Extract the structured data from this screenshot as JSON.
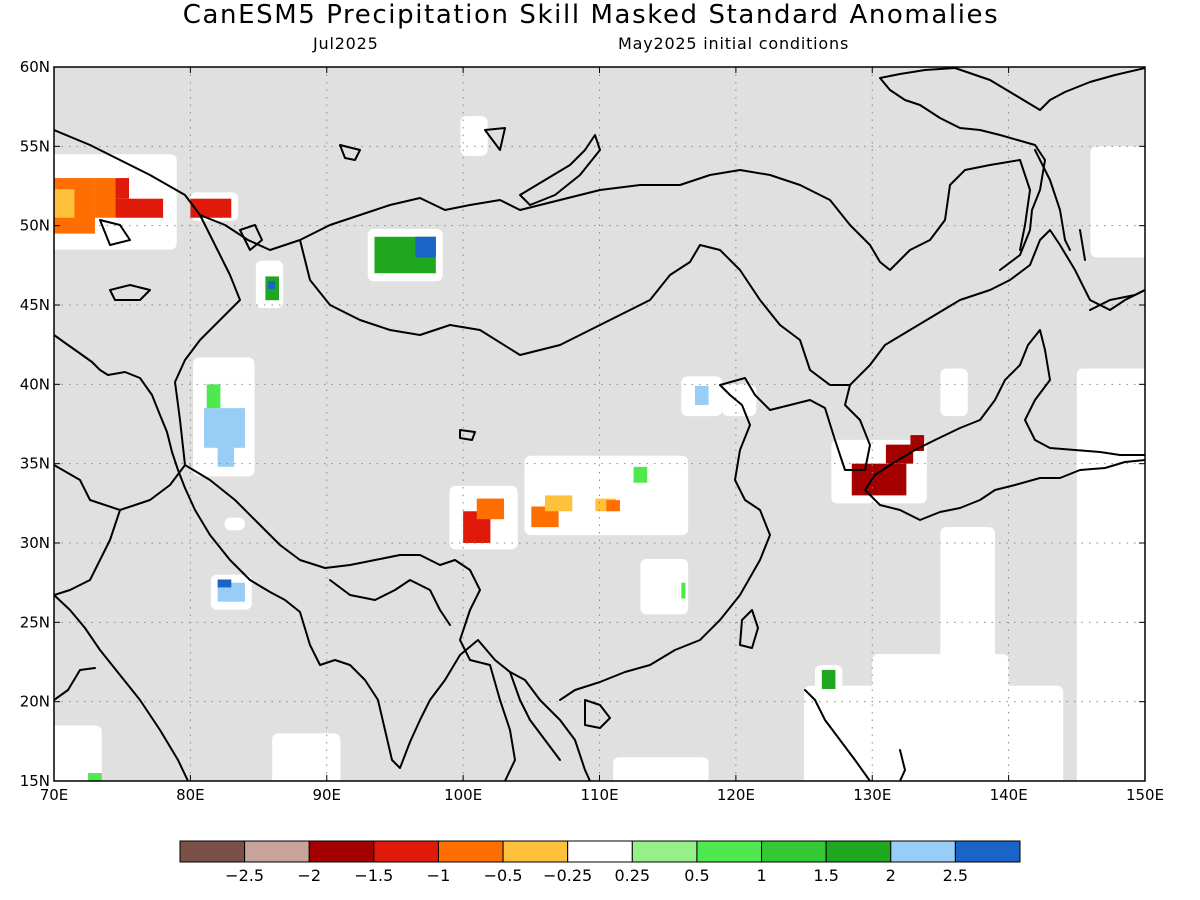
{
  "title": "CanESM5 Precipitation Skill Masked Standard Anomalies",
  "valid_month": "Jul2025",
  "initial_conditions": "May2025 initial conditions",
  "map": {
    "lon_range": [
      70,
      150
    ],
    "lat_range": [
      15,
      60
    ],
    "lon_ticks": [
      {
        "v": 70,
        "label": "70E"
      },
      {
        "v": 80,
        "label": "80E"
      },
      {
        "v": 90,
        "label": "90E"
      },
      {
        "v": 100,
        "label": "100E"
      },
      {
        "v": 110,
        "label": "110E"
      },
      {
        "v": 120,
        "label": "120E"
      },
      {
        "v": 130,
        "label": "130E"
      },
      {
        "v": 140,
        "label": "140E"
      },
      {
        "v": 150,
        "label": "150E"
      }
    ],
    "lat_ticks": [
      {
        "v": 15,
        "label": "15N"
      },
      {
        "v": 20,
        "label": "20N"
      },
      {
        "v": 25,
        "label": "25N"
      },
      {
        "v": 30,
        "label": "30N"
      },
      {
        "v": 35,
        "label": "35N"
      },
      {
        "v": 40,
        "label": "40N"
      },
      {
        "v": 45,
        "label": "45N"
      },
      {
        "v": 50,
        "label": "50N"
      },
      {
        "v": 55,
        "label": "55N"
      },
      {
        "v": 60,
        "label": "60N"
      }
    ],
    "grid": true,
    "mask_color": "#e0e0e0",
    "anomaly_cells": [
      {
        "lon": 70,
        "lat": 49.5,
        "w": 3,
        "h": 3.5,
        "class": "-1"
      },
      {
        "lon": 70,
        "lat": 50.5,
        "w": 1.5,
        "h": 1.8,
        "class": "-0.5"
      },
      {
        "lon": 73,
        "lat": 50.5,
        "w": 1.5,
        "h": 2.5,
        "class": "-1"
      },
      {
        "lon": 74.5,
        "lat": 50.5,
        "w": 3.5,
        "h": 1.2,
        "class": "-1.5"
      },
      {
        "lon": 74.5,
        "lat": 51.7,
        "w": 1,
        "h": 1.3,
        "class": "-1.5"
      },
      {
        "lon": 80,
        "lat": 50.5,
        "w": 3,
        "h": 1.2,
        "class": "-1.5"
      },
      {
        "lon": 93.5,
        "lat": 47,
        "w": 4.5,
        "h": 2.3,
        "class": "1.5"
      },
      {
        "lon": 96.5,
        "lat": 48,
        "w": 1.5,
        "h": 1.3,
        "class": "2.5"
      },
      {
        "lon": 85.5,
        "lat": 45.3,
        "w": 1,
        "h": 1.5,
        "class": "1.5"
      },
      {
        "lon": 85.7,
        "lat": 46,
        "w": 0.5,
        "h": 0.5,
        "class": "2.5"
      },
      {
        "lon": 81,
        "lat": 36,
        "w": 3,
        "h": 2.5,
        "class": "2"
      },
      {
        "lon": 82,
        "lat": 34.8,
        "w": 1.2,
        "h": 1.5,
        "class": "2"
      },
      {
        "lon": 81.2,
        "lat": 38.5,
        "w": 1,
        "h": 1.5,
        "class": "0.5"
      },
      {
        "lon": 82,
        "lat": 26.3,
        "w": 2,
        "h": 1.2,
        "class": "2"
      },
      {
        "lon": 82,
        "lat": 27.2,
        "w": 1,
        "h": 0.5,
        "class": "2.5"
      },
      {
        "lon": 100,
        "lat": 30,
        "w": 2,
        "h": 2,
        "class": "-1.5"
      },
      {
        "lon": 101,
        "lat": 31.5,
        "w": 2,
        "h": 1.3,
        "class": "-1"
      },
      {
        "lon": 105,
        "lat": 31,
        "w": 2,
        "h": 1.3,
        "class": "-1"
      },
      {
        "lon": 106,
        "lat": 32,
        "w": 2,
        "h": 1,
        "class": "-0.5"
      },
      {
        "lon": 109.7,
        "lat": 32,
        "w": 1.5,
        "h": 0.8,
        "class": "-0.5"
      },
      {
        "lon": 110.5,
        "lat": 32,
        "w": 1,
        "h": 0.7,
        "class": "-1"
      },
      {
        "lon": 112.5,
        "lat": 33.8,
        "w": 1,
        "h": 1,
        "class": "0.5"
      },
      {
        "lon": 117,
        "lat": 38.7,
        "w": 1,
        "h": 1.2,
        "class": "2"
      },
      {
        "lon": 128.5,
        "lat": 33,
        "w": 4,
        "h": 2,
        "class": "-2"
      },
      {
        "lon": 131,
        "lat": 35,
        "w": 2,
        "h": 1.2,
        "class": "-2"
      },
      {
        "lon": 132.8,
        "lat": 35.8,
        "w": 1,
        "h": 1,
        "class": "-2"
      },
      {
        "lon": 126.3,
        "lat": 20.8,
        "w": 1,
        "h": 1.2,
        "class": "1.5"
      },
      {
        "lon": 72.5,
        "lat": 15,
        "w": 1,
        "h": 0.5,
        "class": "0.5"
      },
      {
        "lon": 116,
        "lat": 26.5,
        "w": 0.3,
        "h": 1,
        "class": "0.5"
      }
    ],
    "unmasked_regions": [
      {
        "lon": 69,
        "lat": 48.5,
        "w": 10,
        "h": 6
      },
      {
        "lon": 80,
        "lat": 50.3,
        "w": 3.5,
        "h": 1.8
      },
      {
        "lon": 93,
        "lat": 46.5,
        "w": 5.5,
        "h": 3.3
      },
      {
        "lon": 84.8,
        "lat": 44.8,
        "w": 2,
        "h": 3
      },
      {
        "lon": 80.2,
        "lat": 34.2,
        "w": 4.5,
        "h": 7.5
      },
      {
        "lon": 81.5,
        "lat": 25.8,
        "w": 3,
        "h": 2.2
      },
      {
        "lon": 99,
        "lat": 29.6,
        "w": 5,
        "h": 4
      },
      {
        "lon": 104.5,
        "lat": 30.5,
        "w": 12,
        "h": 5
      },
      {
        "lon": 113,
        "lat": 25.5,
        "w": 3.5,
        "h": 3.5
      },
      {
        "lon": 116,
        "lat": 38,
        "w": 3,
        "h": 2.5
      },
      {
        "lon": 119,
        "lat": 38,
        "w": 2.5,
        "h": 2
      },
      {
        "lon": 127,
        "lat": 32.5,
        "w": 7,
        "h": 4
      },
      {
        "lon": 99.8,
        "lat": 54.4,
        "w": 2,
        "h": 2.5
      },
      {
        "lon": 82.5,
        "lat": 30.8,
        "w": 1.5,
        "h": 0.8
      },
      {
        "lon": 125.8,
        "lat": 20.3,
        "w": 2,
        "h": 2
      },
      {
        "lon": 69,
        "lat": 14,
        "w": 4.5,
        "h": 4.5
      },
      {
        "lon": 86,
        "lat": 14,
        "w": 5,
        "h": 4
      },
      {
        "lon": 111,
        "lat": 14,
        "w": 7,
        "h": 2.5
      },
      {
        "lon": 125,
        "lat": 14,
        "w": 19,
        "h": 7
      },
      {
        "lon": 130,
        "lat": 17,
        "w": 10,
        "h": 6
      },
      {
        "lon": 135,
        "lat": 14,
        "w": 4,
        "h": 17
      },
      {
        "lon": 145,
        "lat": 14,
        "w": 6,
        "h": 27
      },
      {
        "lon": 146,
        "lat": 48,
        "w": 5,
        "h": 7
      },
      {
        "lon": 135,
        "lat": 38,
        "w": 2,
        "h": 3
      }
    ]
  },
  "colorbar": {
    "colors": [
      "#7a5048",
      "#c8a39a",
      "#a50000",
      "#e01a0a",
      "#ff6e00",
      "#ffc13b",
      "#ffffff",
      "#96f08a",
      "#4fe84f",
      "#34c934",
      "#1fa81f",
      "#98cdf5",
      "#1a64c8"
    ],
    "class_keys": [
      "-3",
      "-2.5",
      "-2",
      "-1.5",
      "-1",
      "-0.5",
      "0",
      "0.25",
      "0.5",
      "1",
      "1.5",
      "2",
      "2.5"
    ],
    "labels": [
      "−2.5",
      "−2",
      "−1.5",
      "−1",
      "−0.5",
      "−0.25",
      "0.25",
      "0.5",
      "1",
      "1.5",
      "2",
      "2.5"
    ]
  }
}
